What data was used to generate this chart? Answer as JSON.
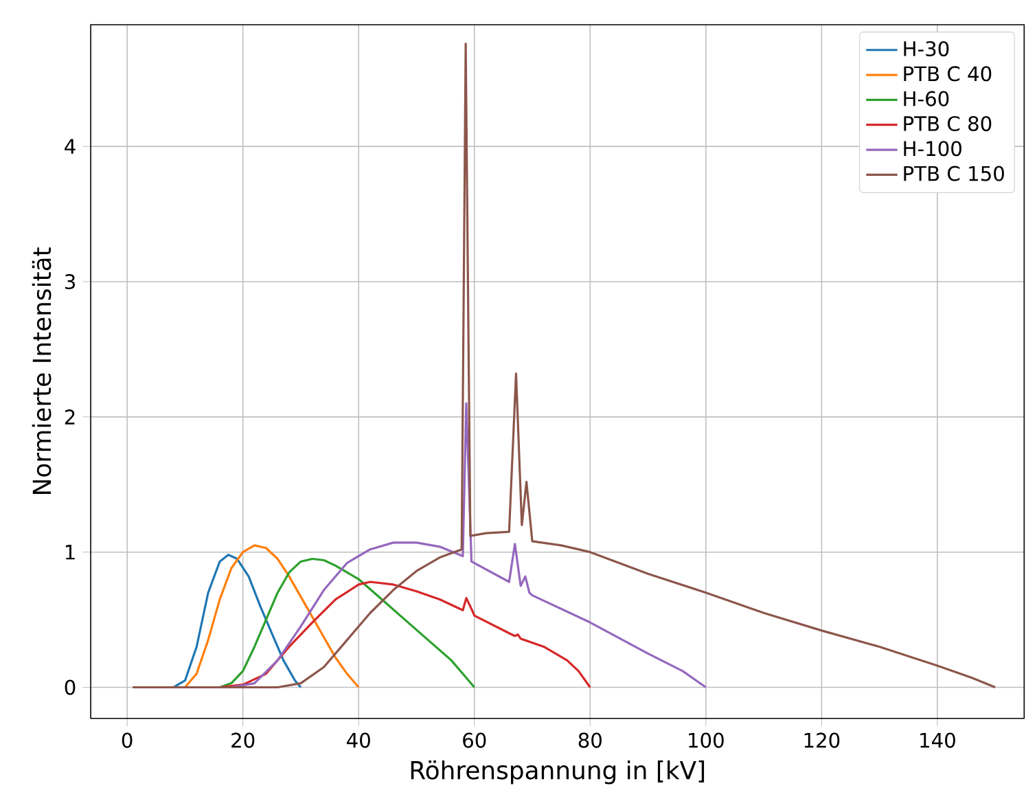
{
  "chart_data": {
    "type": "line",
    "xlabel": "Röhrenspannung in [kV]",
    "ylabel": "Normierte Intensität",
    "xlim": [
      -6.3,
      155
    ],
    "ylim": [
      -0.23,
      4.9
    ],
    "xticks": [
      0,
      20,
      40,
      60,
      80,
      100,
      120,
      140
    ],
    "yticks": [
      0,
      1,
      2,
      3,
      4
    ],
    "grid": true,
    "legend": "top right",
    "marker": "none",
    "line_style": "solid",
    "series": [
      {
        "name": "H-30",
        "color": "#1f77b4",
        "x": [
          1,
          8,
          10,
          12,
          14,
          16,
          17.5,
          19,
          21,
          23,
          25,
          27,
          29,
          30
        ],
        "values": [
          0,
          0,
          0.05,
          0.3,
          0.7,
          0.93,
          0.98,
          0.95,
          0.82,
          0.6,
          0.4,
          0.2,
          0.05,
          0
        ]
      },
      {
        "name": "PTB C 40",
        "color": "#ff7f0e",
        "x": [
          1,
          10,
          12,
          14,
          16,
          18,
          20,
          22,
          24,
          26,
          28,
          30,
          32,
          34,
          36,
          38,
          40
        ],
        "values": [
          0,
          0,
          0.1,
          0.35,
          0.65,
          0.88,
          1.0,
          1.05,
          1.03,
          0.95,
          0.82,
          0.67,
          0.52,
          0.37,
          0.22,
          0.1,
          0
        ]
      },
      {
        "name": "H-60",
        "color": "#2ca02c",
        "x": [
          1,
          16,
          18,
          20,
          22,
          24,
          26,
          28,
          30,
          32,
          34,
          36,
          40,
          44,
          48,
          52,
          56,
          58,
          60
        ],
        "values": [
          0,
          0,
          0.03,
          0.12,
          0.3,
          0.5,
          0.7,
          0.85,
          0.93,
          0.95,
          0.94,
          0.9,
          0.8,
          0.65,
          0.5,
          0.35,
          0.2,
          0.1,
          0
        ]
      },
      {
        "name": "PTB C 80",
        "color": "#d62728",
        "x": [
          1,
          16,
          20,
          24,
          28,
          32,
          36,
          40,
          42,
          46,
          50,
          54,
          58,
          58.6,
          59.5,
          60,
          66,
          67,
          67.5,
          68,
          72,
          76,
          78,
          80
        ],
        "values": [
          0,
          0,
          0.02,
          0.1,
          0.3,
          0.48,
          0.65,
          0.76,
          0.78,
          0.76,
          0.71,
          0.65,
          0.57,
          0.66,
          0.58,
          0.53,
          0.4,
          0.38,
          0.39,
          0.36,
          0.3,
          0.2,
          0.12,
          0
        ]
      },
      {
        "name": "H-100",
        "color": "#9467bd",
        "x": [
          1,
          18,
          22,
          26,
          30,
          34,
          38,
          42,
          46,
          50,
          54,
          58,
          58.6,
          59.5,
          66,
          67,
          68,
          68.8,
          69.5,
          70,
          80,
          90,
          96,
          100
        ],
        "values": [
          0,
          0,
          0.03,
          0.2,
          0.45,
          0.72,
          0.92,
          1.02,
          1.07,
          1.07,
          1.04,
          0.97,
          2.1,
          0.93,
          0.78,
          1.06,
          0.75,
          0.82,
          0.7,
          0.68,
          0.48,
          0.25,
          0.12,
          0
        ]
      },
      {
        "name": "PTB C 150",
        "color": "#8c564b",
        "x": [
          1,
          26,
          30,
          34,
          38,
          42,
          46,
          50,
          54,
          57.8,
          58.5,
          59.3,
          62,
          66,
          67.2,
          68.2,
          69,
          70,
          75,
          80,
          90,
          100,
          110,
          120,
          130,
          140,
          146,
          150
        ],
        "values": [
          0,
          0,
          0.03,
          0.15,
          0.35,
          0.55,
          0.72,
          0.86,
          0.96,
          1.02,
          4.76,
          1.12,
          1.14,
          1.15,
          2.32,
          1.2,
          1.52,
          1.08,
          1.05,
          1.0,
          0.84,
          0.7,
          0.55,
          0.42,
          0.3,
          0.16,
          0.07,
          0
        ]
      }
    ]
  }
}
